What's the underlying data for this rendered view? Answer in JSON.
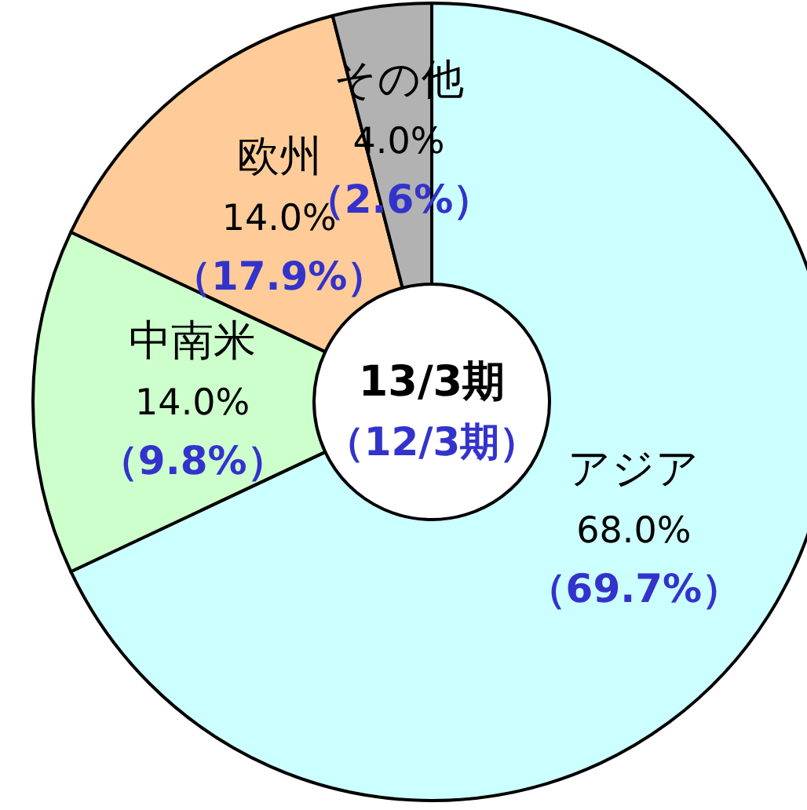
{
  "chart_data": {
    "type": "donut",
    "title": "13/3期",
    "subtitle": "（12/3期）",
    "categories": [
      "アジア",
      "中南米",
      "欧州",
      "その他"
    ],
    "values": [
      68.0,
      14.0,
      14.0,
      4.0
    ],
    "value_labels": [
      "68.0%",
      "14.0%",
      "14.0%",
      "4.0%"
    ],
    "colors": [
      "#ccffff",
      "#ccffcc",
      "#ffcc99",
      "#b2b2b2"
    ],
    "annotations": [
      "（69.7%）",
      "（9.8%）",
      "（17.9%）",
      "（2.6%）"
    ]
  }
}
